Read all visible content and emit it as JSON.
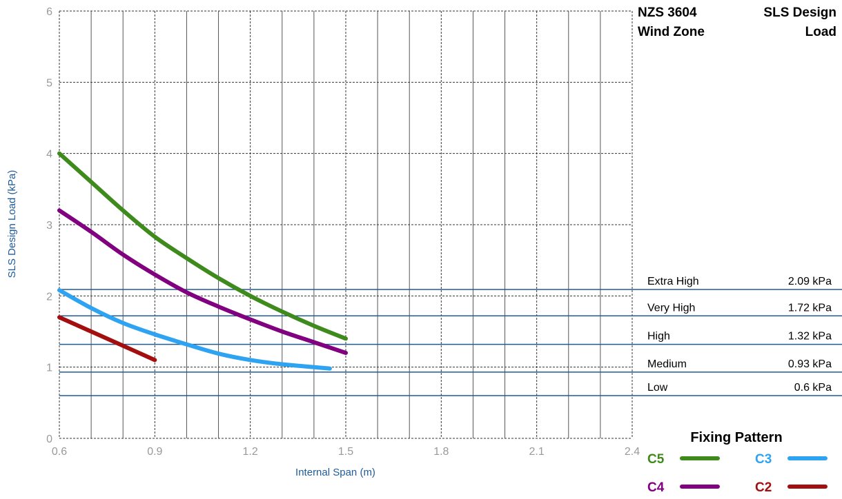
{
  "chart_data": {
    "type": "line",
    "xlabel": "Internal Span (m)",
    "ylabel": "SLS Design Load (kPa)",
    "xlim": [
      0.6,
      2.4
    ],
    "ylim": [
      0,
      6
    ],
    "x_ticks": [
      "0.6",
      "0.9",
      "1.2",
      "1.5",
      "1.8",
      "2.1",
      "2.4"
    ],
    "y_ticks": [
      "0",
      "1",
      "2",
      "3",
      "4",
      "5",
      "6"
    ],
    "grid": true,
    "series": [
      {
        "name": "C5",
        "color": "#3f8a1c",
        "x": [
          0.6,
          0.7,
          0.8,
          0.9,
          1.0,
          1.1,
          1.2,
          1.3,
          1.4,
          1.5
        ],
        "y": [
          4.0,
          3.6,
          3.2,
          2.83,
          2.53,
          2.25,
          2.0,
          1.78,
          1.58,
          1.4
        ]
      },
      {
        "name": "C4",
        "color": "#800080",
        "x": [
          0.6,
          0.7,
          0.8,
          0.9,
          1.0,
          1.1,
          1.2,
          1.3,
          1.4,
          1.5
        ],
        "y": [
          3.2,
          2.9,
          2.58,
          2.3,
          2.05,
          1.85,
          1.67,
          1.5,
          1.35,
          1.2
        ]
      },
      {
        "name": "C3",
        "color": "#2ea3f2",
        "x": [
          0.6,
          0.7,
          0.8,
          0.9,
          1.0,
          1.1,
          1.2,
          1.3,
          1.45
        ],
        "y": [
          2.08,
          1.83,
          1.62,
          1.46,
          1.32,
          1.19,
          1.1,
          1.04,
          0.98
        ]
      },
      {
        "name": "C2",
        "color": "#a30f0f",
        "x": [
          0.6,
          0.7,
          0.8,
          0.9
        ],
        "y": [
          1.7,
          1.5,
          1.3,
          1.1
        ]
      }
    ],
    "wind_zones": {
      "header_left": [
        "NZS 3604",
        "Wind Zone"
      ],
      "header_right": [
        "SLS Design",
        "Load"
      ],
      "line_color": "#1f5a99",
      "zones": [
        {
          "label": "Extra High",
          "value_text": "2.09 kPa",
          "value": 2.09
        },
        {
          "label": "Very High",
          "value_text": "1.72 kPa",
          "value": 1.72
        },
        {
          "label": "High",
          "value_text": "1.32 kPa",
          "value": 1.32
        },
        {
          "label": "Medium",
          "value_text": "0.93 kPa",
          "value": 0.93
        },
        {
          "label": "Low",
          "value_text": "0.6 kPa",
          "value": 0.6
        }
      ]
    },
    "legend": {
      "title": "Fixing Pattern",
      "placement": "bottom-right"
    }
  }
}
